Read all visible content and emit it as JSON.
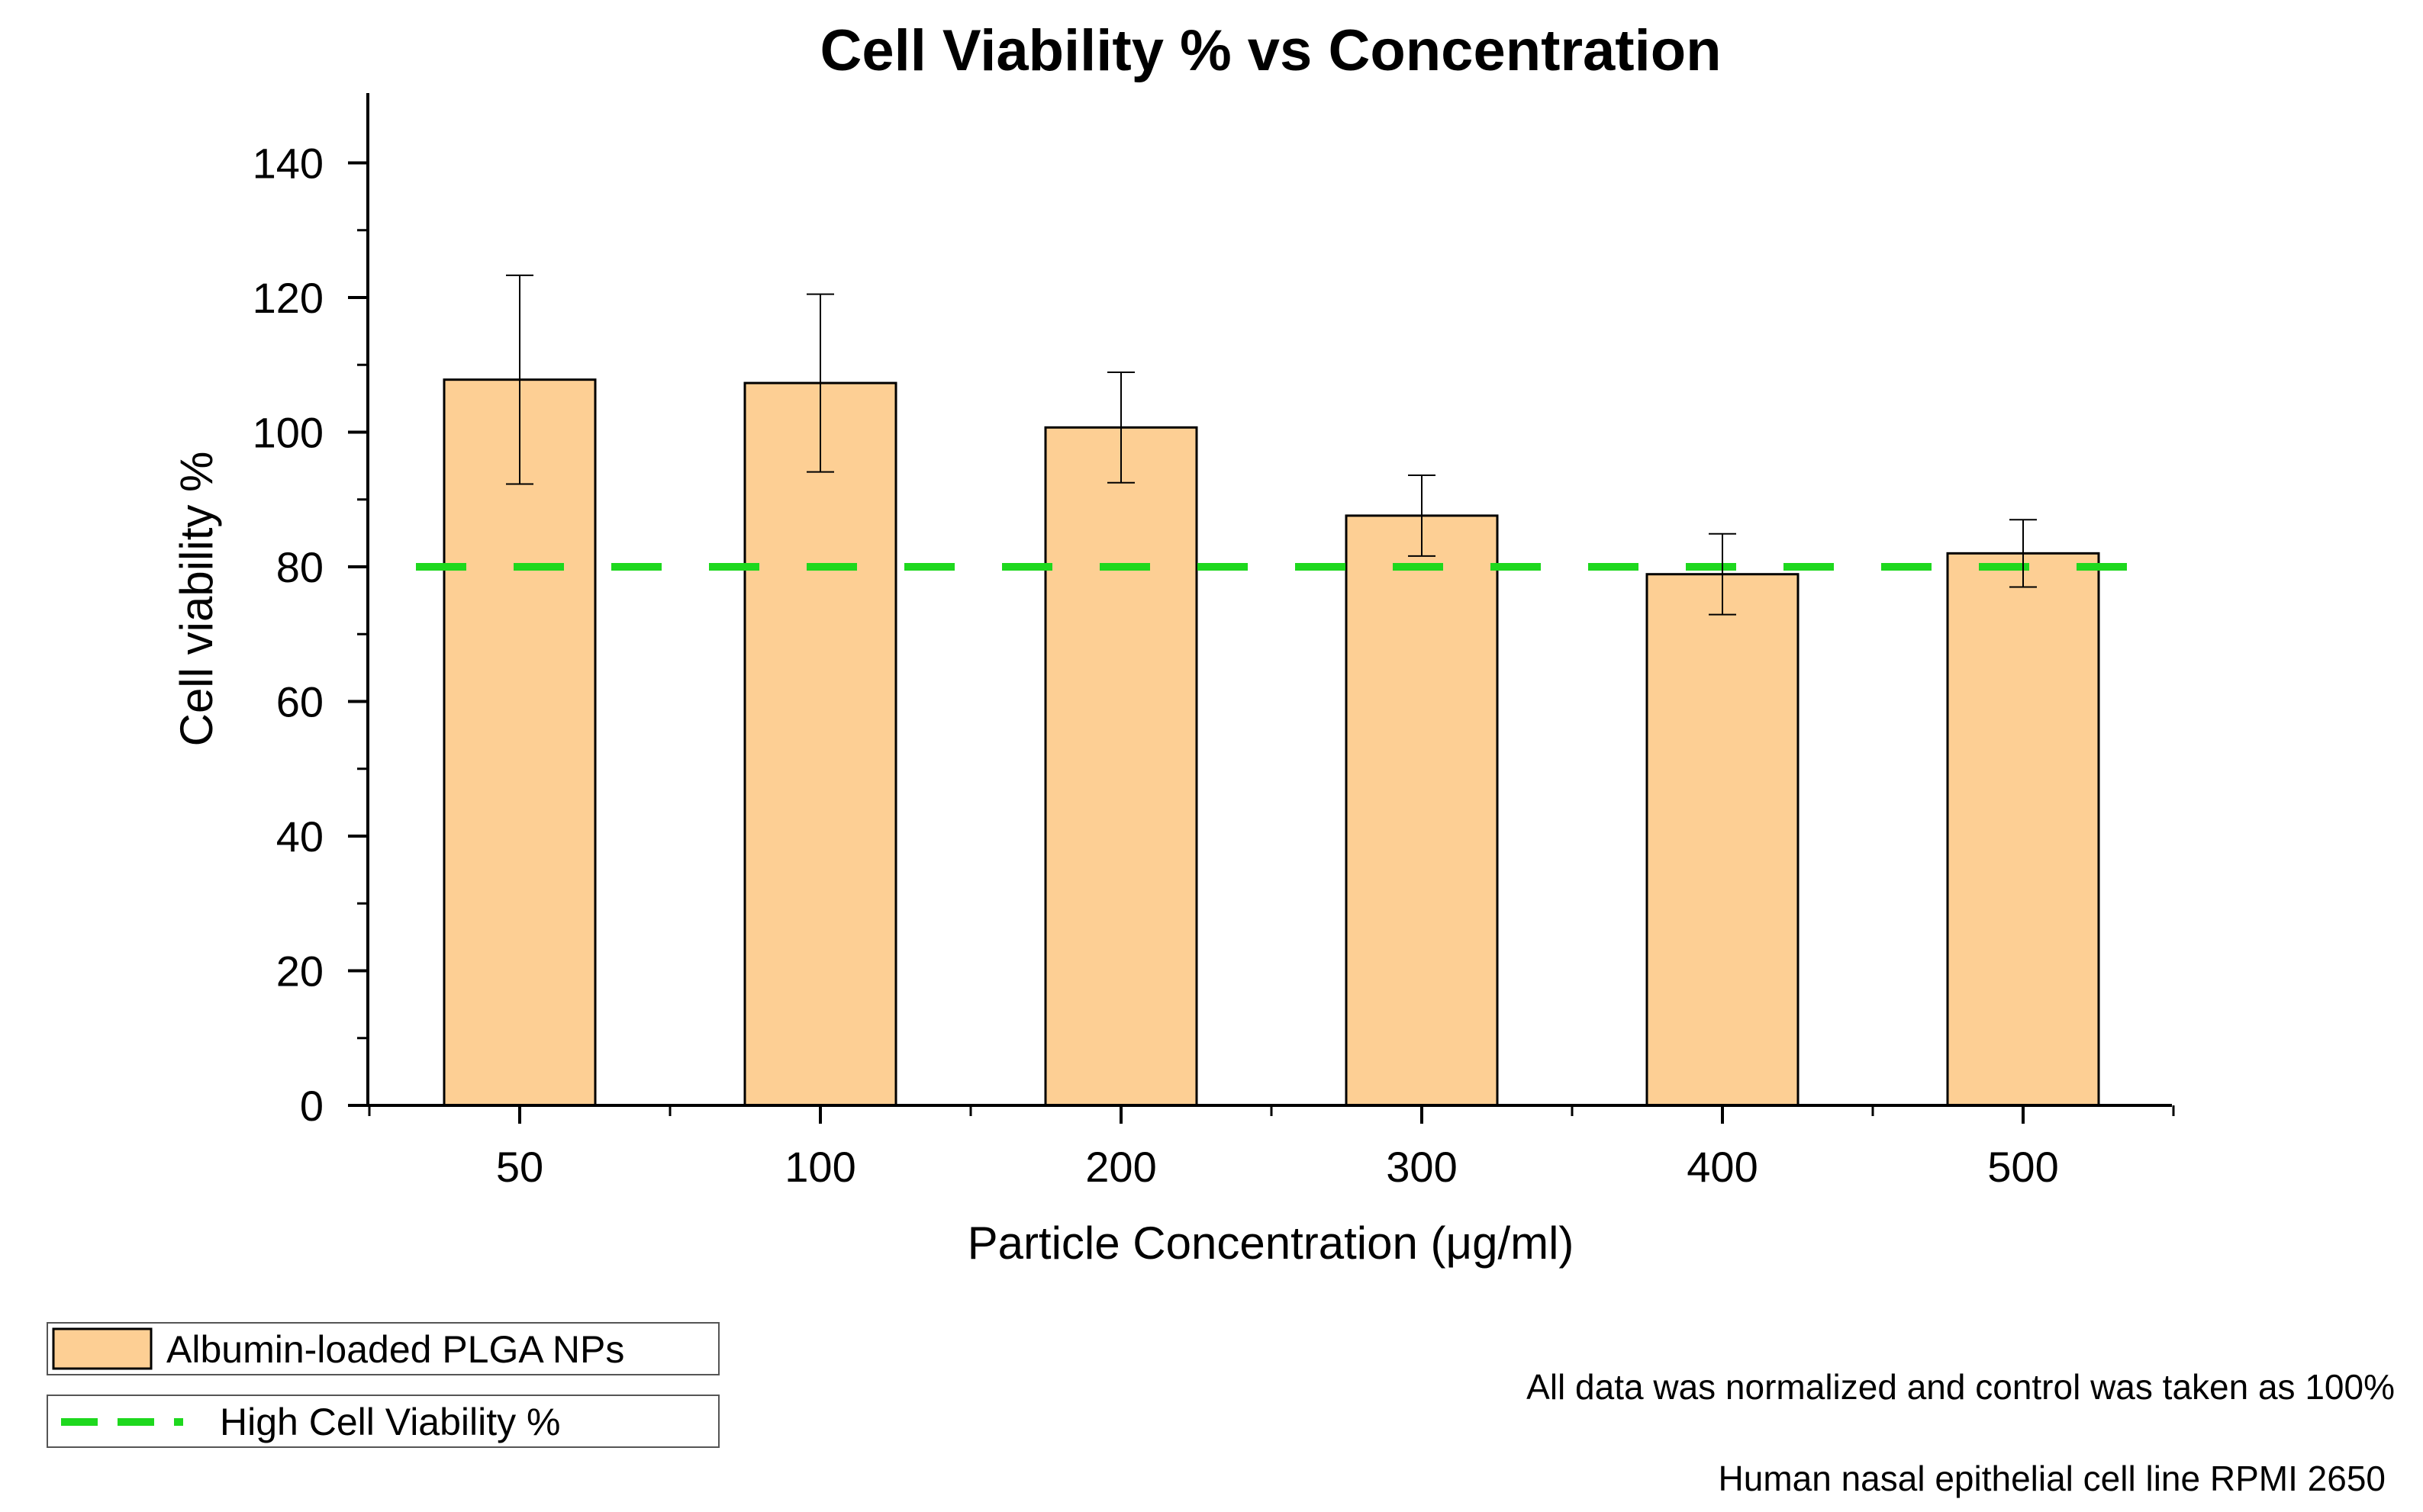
{
  "chart_data": {
    "type": "bar",
    "title": "Cell Viability % vs Concentration",
    "xlabel": "Particle Concentration (μg/ml)",
    "ylabel": "Cell viability %",
    "categories": [
      "50",
      "100",
      "200",
      "300",
      "400",
      "500"
    ],
    "ylim": [
      0,
      150
    ],
    "yticks": [
      0,
      20,
      40,
      60,
      80,
      100,
      120,
      140
    ],
    "ytick_labels": [
      "0",
      "20",
      "40",
      "60",
      "80",
      "100",
      "120",
      "140"
    ],
    "grid": false,
    "series": [
      {
        "name": "Albumin-loaded PLGA NPs",
        "values": [
          107.8,
          107.3,
          100.7,
          87.6,
          78.9,
          82.0
        ],
        "error": [
          15.5,
          13.2,
          8.2,
          6.0,
          6.0,
          5.0
        ],
        "color": "#FDCF94"
      }
    ],
    "reference_line": {
      "name": "High Cell Viability %",
      "value": 80,
      "color": "#1ED81E",
      "style": "dashed"
    },
    "legend_position": "bottom-left",
    "annotations": [
      "All data was normalized and control was taken as 100%",
      "Human nasal epithelial cell line RPMI 2650"
    ]
  }
}
